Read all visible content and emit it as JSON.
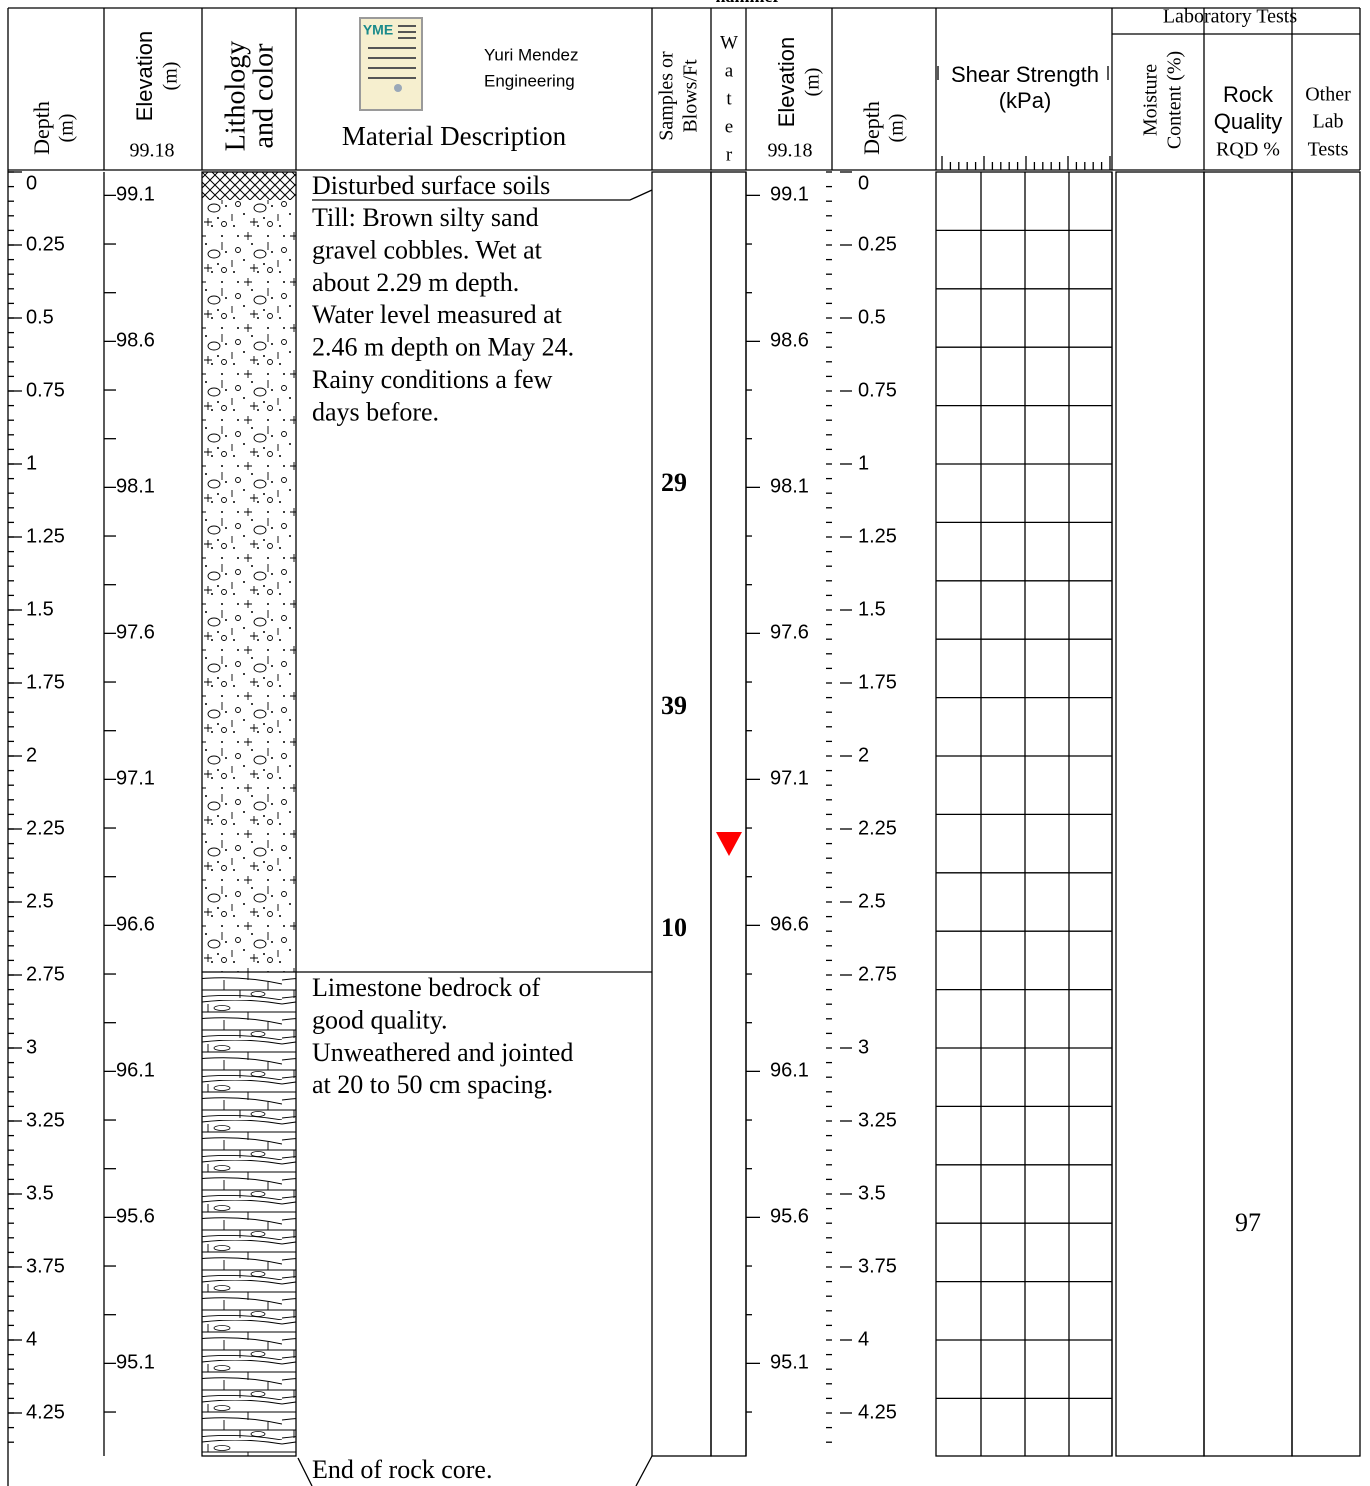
{
  "top_note": "hammer",
  "header": {
    "depth": "Depth",
    "depth_unit": "(m)",
    "elevation": "Elevation",
    "elevation_unit": "(m)",
    "ground_elevation": 99.18,
    "lithology": "Lithology",
    "lithology_2": "and color",
    "logo": "YME",
    "company": "Yuri Mendez",
    "company_2": "Engineering",
    "description": "Material Description",
    "samples": "Samples or",
    "samples_2": "Blows/Ft",
    "water": [
      "W",
      "a",
      "t",
      "e",
      "r"
    ],
    "shear": "Shear Strength",
    "shear_unit": "(kPa)",
    "lab": "Laboratory Tests",
    "moisture": "Moisture",
    "moisture_2": "Content (%)",
    "rqd": "Rock",
    "rqd_2": "Quality",
    "rqd_3": "RQD %",
    "other": "Other",
    "other_2": "Lab",
    "other_3": "Tests"
  },
  "depth_labels": [
    0,
    0.25,
    0.5,
    0.75,
    1,
    1.25,
    1.5,
    1.75,
    2,
    2.25,
    2.5,
    2.75,
    3,
    3.25,
    3.5,
    3.75,
    4,
    4.25
  ],
  "elevation_labels": [
    99.1,
    98.6,
    98.1,
    97.6,
    97.1,
    96.6,
    96.1,
    95.6,
    95.1
  ],
  "layers": [
    {
      "lines": [
        "Disturbed surface soils"
      ]
    },
    {
      "lines": [
        "Till: Brown silty sand",
        "gravel cobbles. Wet at",
        "about 2.29 m depth.",
        "Water level measured at",
        "2.46 m depth on May 24.",
        "Rainy conditions a few",
        "days before."
      ]
    },
    {
      "lines": [
        "Limestone bedrock of",
        "good quality.",
        "Unweathered and jointed",
        "at 20 to 50 cm spacing."
      ]
    }
  ],
  "end_note": "End of rock core.",
  "samples": [
    29,
    39,
    10
  ],
  "rqd": [
    97
  ]
}
